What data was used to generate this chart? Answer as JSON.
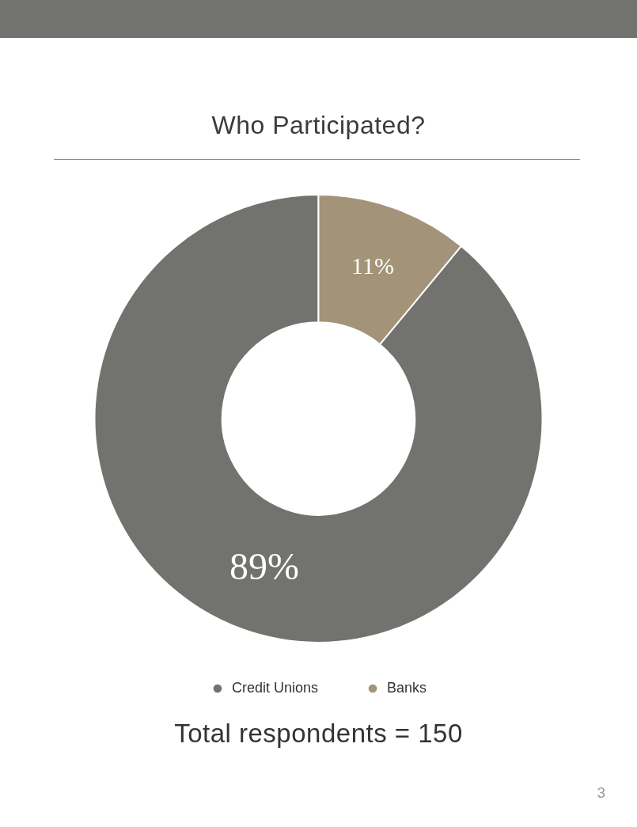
{
  "chart_data": {
    "type": "donut",
    "title": "Who Participated?",
    "categories": [
      "Credit Unions",
      "Banks"
    ],
    "values": [
      89,
      11
    ],
    "colors": [
      "#72726f",
      "#a39479"
    ],
    "value_labels": [
      "89%",
      "11%"
    ],
    "legend": "bottom",
    "annotations": [
      "Total respondents = 150",
      "3"
    ]
  }
}
